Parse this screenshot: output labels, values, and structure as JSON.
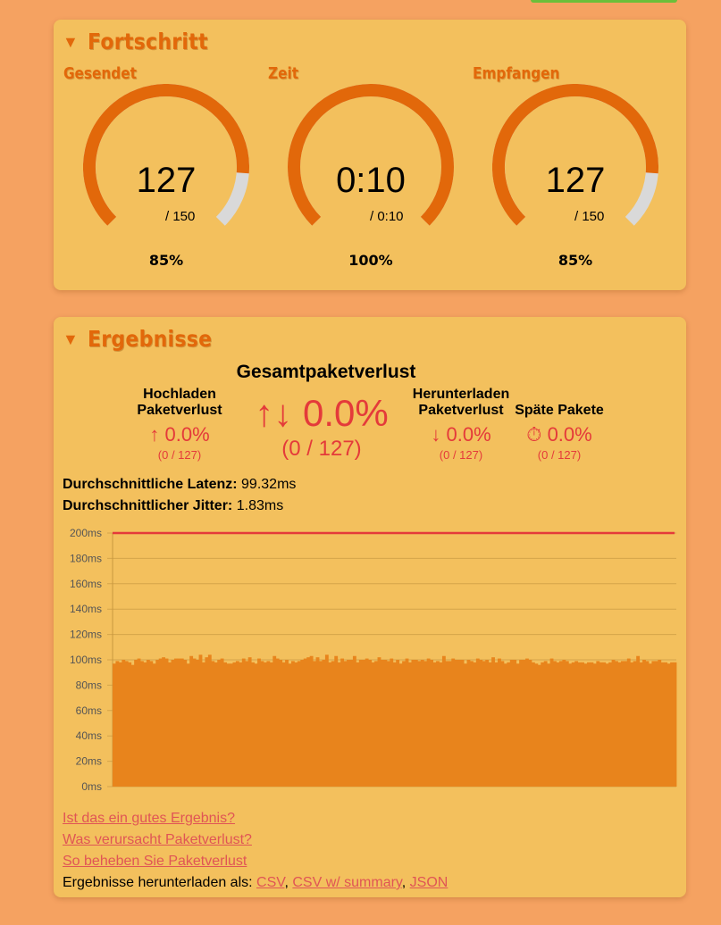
{
  "progress": {
    "title": "Fortschritt",
    "gauges": [
      {
        "label": "Gesendet",
        "value": "127",
        "max_text": "/ 150",
        "percent_text": "85%",
        "fraction": 0.85
      },
      {
        "label": "Zeit",
        "value": "0:10",
        "max_text": "/ 0:10",
        "percent_text": "100%",
        "fraction": 1.0
      },
      {
        "label": "Empfangen",
        "value": "127",
        "max_text": "/ 150",
        "percent_text": "85%",
        "fraction": 0.85
      }
    ]
  },
  "results": {
    "title": "Ergebnisse",
    "total": {
      "title": "Gesamtpaketverlust",
      "arrows": "↑↓",
      "value": "0.0%",
      "sub": "(0 / 127)"
    },
    "upload": {
      "title_line1": "Hochladen",
      "title_line2": "Paketverlust",
      "arrow": "↑",
      "value": "0.0%",
      "sub": "(0 / 127)"
    },
    "download": {
      "title_line1": "Herunterladen",
      "title_line2": "Paketverlust",
      "arrow": "↓",
      "value": "0.0%",
      "sub": "(0 / 127)"
    },
    "late": {
      "title": "Späte Pakete",
      "icon": "⏱",
      "value": "0.0%",
      "sub": "(0 / 127)"
    },
    "latency": {
      "label": "Durchschnittliche Latenz:",
      "value": "99.32ms"
    },
    "jitter": {
      "label": "Durchschnittlicher Jitter:",
      "value": "1.83ms"
    },
    "links": [
      "Ist das ein gutes Ergebnis?",
      "Was verursacht Paketverlust?",
      "So beheben Sie Paketverlust"
    ],
    "download_label": "Ergebnisse herunterladen als:",
    "download_links": [
      "CSV",
      "CSV w/ summary",
      "JSON"
    ]
  },
  "colors": {
    "accent": "#e2680a",
    "panel": "#f3c05d",
    "background": "#f5a261",
    "bars": "#e8841c",
    "loss": "#e43a3a",
    "gauge_track": "#d9d9d9"
  },
  "chart_data": {
    "type": "bar",
    "ylabel": "",
    "ylim": [
      0,
      200
    ],
    "yticks": [
      "0ms",
      "20ms",
      "40ms",
      "60ms",
      "80ms",
      "100ms",
      "120ms",
      "140ms",
      "160ms",
      "180ms",
      "200ms"
    ],
    "threshold": 200,
    "values": [
      97,
      99,
      98,
      100,
      99,
      98,
      96,
      100,
      101,
      99,
      98,
      100,
      99,
      97,
      100,
      101,
      102,
      101,
      98,
      100,
      101,
      101,
      101,
      100,
      97,
      103,
      101,
      100,
      104,
      98,
      102,
      104,
      99,
      98,
      100,
      101,
      98,
      97,
      97,
      98,
      99,
      98,
      101,
      99,
      102,
      98,
      97,
      101,
      99,
      98,
      99,
      98,
      103,
      101,
      100,
      98,
      100,
      97,
      99,
      98,
      99,
      100,
      101,
      102,
      103,
      99,
      102,
      99,
      100,
      104,
      98,
      99,
      103,
      98,
      101,
      99,
      100,
      100,
      103,
      98,
      100,
      100,
      101,
      100,
      98,
      99,
      102,
      100,
      100,
      99,
      101,
      98,
      100,
      97,
      99,
      101,
      98,
      100,
      100,
      99,
      100,
      99,
      101,
      100,
      98,
      99,
      98,
      103,
      99,
      99,
      101,
      100,
      100,
      100,
      97,
      100,
      99,
      98,
      101,
      100,
      99,
      100,
      98,
      102,
      98,
      101,
      99,
      97,
      98,
      100,
      100,
      97,
      100,
      100,
      101,
      100,
      98,
      97,
      96,
      98,
      99,
      97,
      101,
      99,
      98,
      99,
      100,
      99,
      97,
      98,
      99,
      98,
      98,
      97,
      98,
      98,
      97,
      99,
      98,
      98,
      97,
      98,
      100,
      99,
      98,
      99,
      99,
      101,
      98,
      99,
      103,
      98,
      100,
      99,
      97,
      99,
      99,
      100,
      98,
      98,
      97,
      98,
      98
    ]
  }
}
